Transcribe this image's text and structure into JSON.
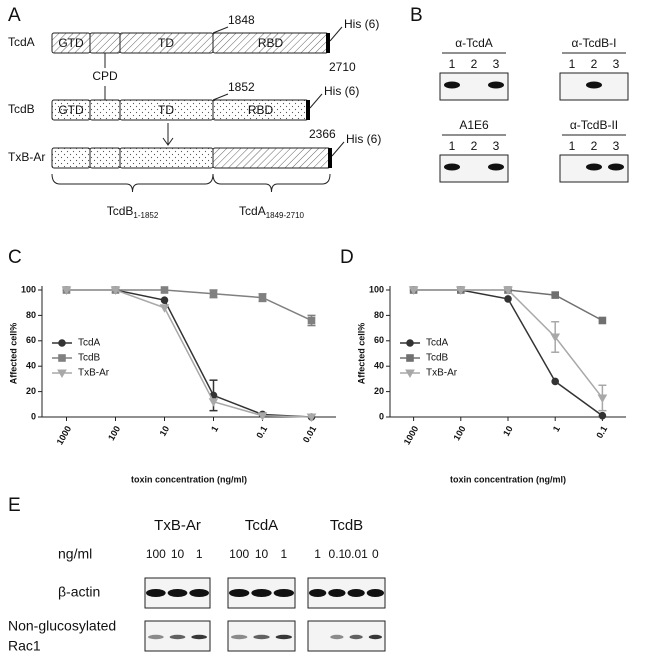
{
  "panel_a": {
    "label": "A",
    "rows": [
      {
        "name": "TcdA",
        "domains": [
          "GTD",
          "TD",
          "RBD"
        ],
        "position": "1848",
        "end": "2710",
        "tag": "His (6)"
      },
      {
        "name": "TcdB",
        "domains": [
          "GTD",
          "TD",
          "RBD"
        ],
        "position": "1852",
        "end": "2366",
        "tag": "His (6)"
      },
      {
        "name": "TxB-Ar",
        "tag": "His (6)"
      }
    ],
    "cpd": "CPD",
    "brace_labels": [
      {
        "text": "TcdB",
        "sub": "1-1852"
      },
      {
        "text": "TcdA",
        "sub": "1849-2710"
      }
    ]
  },
  "panel_b": {
    "label": "B",
    "blots": [
      {
        "antibody": "α-TcdA",
        "lanes": [
          "1",
          "2",
          "3"
        ]
      },
      {
        "antibody": "α-TcdB-I",
        "lanes": [
          "1",
          "2",
          "3"
        ]
      },
      {
        "antibody": "A1E6",
        "lanes": [
          "1",
          "2",
          "3"
        ]
      },
      {
        "antibody": "α-TcdB-II",
        "lanes": [
          "1",
          "2",
          "3"
        ]
      }
    ]
  },
  "chart_data": [
    {
      "type": "line",
      "panel_label": "C",
      "xlabel": "toxin concentration (ng/ml)",
      "ylabel": "Affected cell%",
      "categories": [
        "1000",
        "100",
        "10",
        "1",
        "0.1",
        "0.01"
      ],
      "ylim": [
        0,
        100
      ],
      "yticks": [
        0,
        20,
        40,
        60,
        80,
        100
      ],
      "legend": "left",
      "series": [
        {
          "name": "TcdA",
          "color": "#333333",
          "marker": "circle",
          "values": [
            100,
            100,
            92,
            17,
            2,
            0
          ],
          "errors": [
            null,
            null,
            null,
            12,
            null,
            null
          ]
        },
        {
          "name": "TcdB",
          "color": "#808080",
          "marker": "square",
          "values": [
            100,
            100,
            100,
            97,
            94,
            76
          ],
          "errors": [
            null,
            null,
            null,
            3,
            3,
            4
          ]
        },
        {
          "name": "TxB-Ar",
          "color": "#a8a8a8",
          "marker": "triangle-down",
          "values": [
            100,
            100,
            86,
            12,
            1,
            0
          ],
          "errors": [
            null,
            null,
            null,
            null,
            null,
            null
          ]
        }
      ]
    },
    {
      "type": "line",
      "panel_label": "D",
      "xlabel": "toxin concentration (ng/ml)",
      "ylabel": "Affected cell%",
      "categories": [
        "1000",
        "100",
        "10",
        "1",
        "0.1"
      ],
      "ylim": [
        0,
        100
      ],
      "yticks": [
        0,
        20,
        40,
        60,
        80,
        100
      ],
      "legend": "left",
      "series": [
        {
          "name": "TcdA",
          "color": "#333333",
          "marker": "circle",
          "values": [
            100,
            100,
            93,
            28,
            1
          ],
          "errors": [
            null,
            null,
            null,
            null,
            null
          ]
        },
        {
          "name": "TcdB",
          "color": "#707070",
          "marker": "square",
          "values": [
            100,
            100,
            100,
            96,
            76
          ],
          "errors": [
            null,
            null,
            null,
            null,
            null
          ]
        },
        {
          "name": "TxB-Ar",
          "color": "#a8a8a8",
          "marker": "triangle-down",
          "values": [
            100,
            100,
            100,
            63,
            15
          ],
          "errors": [
            null,
            null,
            null,
            12,
            10
          ]
        }
      ]
    }
  ],
  "panel_e": {
    "label": "E",
    "unit": "ng/ml",
    "groups": [
      {
        "name": "TxB-Ar",
        "doses": [
          "100",
          "10",
          "1"
        ]
      },
      {
        "name": "TcdA",
        "doses": [
          "100",
          "10",
          "1"
        ]
      },
      {
        "name": "TcdB",
        "doses": [
          "1",
          "0.1",
          "0.01",
          "0"
        ]
      }
    ],
    "rows": [
      {
        "lines": [
          "β-actin"
        ]
      },
      {
        "lines": [
          "Non-glucosylated",
          "Rac1"
        ]
      }
    ]
  }
}
